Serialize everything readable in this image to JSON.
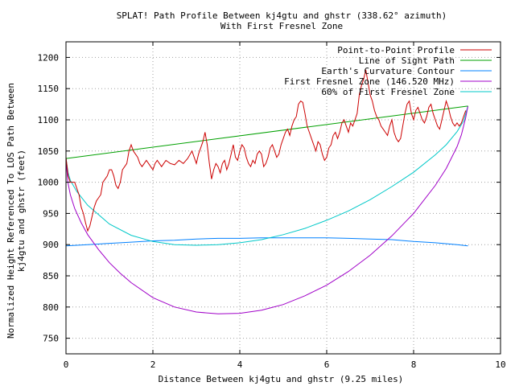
{
  "chart_data": {
    "type": "line",
    "title": "SPLAT! Path Profile Between kj4gtu and ghstr (338.62° azimuth)",
    "subtitle": "With First Fresnel Zone",
    "xlabel": "Distance Between kj4gtu and ghstr (9.25 miles)",
    "ylabel_line1": "Normalized Height Referenced To LOS Path Between",
    "ylabel_line2": "kj4gtu and ghstr (feet)",
    "xlim": [
      0,
      10
    ],
    "ylim": [
      725,
      1225
    ],
    "xticks": [
      "0",
      "2",
      "4",
      "6",
      "8",
      "10"
    ],
    "yticks": [
      "750",
      "800",
      "850",
      "900",
      "950",
      "1000",
      "1050",
      "1100",
      "1150",
      "1200"
    ],
    "grid": true,
    "legend_position": "top-right",
    "series": [
      {
        "name": "Point-to-Point Profile",
        "color": "#cc0000",
        "points": [
          [
            0.0,
            1040
          ],
          [
            0.05,
            1010
          ],
          [
            0.1,
            1000
          ],
          [
            0.15,
            1000
          ],
          [
            0.2,
            1000
          ],
          [
            0.3,
            980
          ],
          [
            0.35,
            960
          ],
          [
            0.4,
            950
          ],
          [
            0.45,
            935
          ],
          [
            0.5,
            922
          ],
          [
            0.55,
            930
          ],
          [
            0.6,
            945
          ],
          [
            0.65,
            960
          ],
          [
            0.7,
            970
          ],
          [
            0.8,
            980
          ],
          [
            0.85,
            1000
          ],
          [
            0.9,
            1005
          ],
          [
            0.95,
            1010
          ],
          [
            1.0,
            1020
          ],
          [
            1.05,
            1020
          ],
          [
            1.1,
            1010
          ],
          [
            1.15,
            995
          ],
          [
            1.2,
            990
          ],
          [
            1.25,
            1000
          ],
          [
            1.3,
            1020
          ],
          [
            1.35,
            1025
          ],
          [
            1.4,
            1030
          ],
          [
            1.45,
            1050
          ],
          [
            1.5,
            1060
          ],
          [
            1.55,
            1050
          ],
          [
            1.6,
            1045
          ],
          [
            1.65,
            1040
          ],
          [
            1.7,
            1030
          ],
          [
            1.75,
            1025
          ],
          [
            1.8,
            1030
          ],
          [
            1.85,
            1035
          ],
          [
            1.9,
            1030
          ],
          [
            2.0,
            1020
          ],
          [
            2.05,
            1030
          ],
          [
            2.1,
            1035
          ],
          [
            2.2,
            1025
          ],
          [
            2.25,
            1030
          ],
          [
            2.3,
            1035
          ],
          [
            2.4,
            1030
          ],
          [
            2.5,
            1028
          ],
          [
            2.6,
            1035
          ],
          [
            2.7,
            1030
          ],
          [
            2.8,
            1038
          ],
          [
            2.9,
            1050
          ],
          [
            2.95,
            1040
          ],
          [
            3.0,
            1030
          ],
          [
            3.05,
            1045
          ],
          [
            3.1,
            1055
          ],
          [
            3.15,
            1065
          ],
          [
            3.2,
            1080
          ],
          [
            3.25,
            1060
          ],
          [
            3.3,
            1030
          ],
          [
            3.35,
            1005
          ],
          [
            3.4,
            1020
          ],
          [
            3.45,
            1030
          ],
          [
            3.5,
            1025
          ],
          [
            3.55,
            1015
          ],
          [
            3.6,
            1030
          ],
          [
            3.65,
            1035
          ],
          [
            3.7,
            1020
          ],
          [
            3.75,
            1030
          ],
          [
            3.8,
            1045
          ],
          [
            3.85,
            1060
          ],
          [
            3.9,
            1040
          ],
          [
            3.95,
            1035
          ],
          [
            4.0,
            1050
          ],
          [
            4.05,
            1060
          ],
          [
            4.1,
            1055
          ],
          [
            4.15,
            1040
          ],
          [
            4.2,
            1030
          ],
          [
            4.25,
            1025
          ],
          [
            4.3,
            1035
          ],
          [
            4.35,
            1030
          ],
          [
            4.4,
            1045
          ],
          [
            4.45,
            1050
          ],
          [
            4.5,
            1045
          ],
          [
            4.55,
            1025
          ],
          [
            4.6,
            1030
          ],
          [
            4.65,
            1040
          ],
          [
            4.7,
            1055
          ],
          [
            4.75,
            1060
          ],
          [
            4.8,
            1050
          ],
          [
            4.85,
            1040
          ],
          [
            4.9,
            1045
          ],
          [
            4.95,
            1060
          ],
          [
            5.0,
            1070
          ],
          [
            5.05,
            1080
          ],
          [
            5.1,
            1085
          ],
          [
            5.15,
            1075
          ],
          [
            5.2,
            1090
          ],
          [
            5.25,
            1100
          ],
          [
            5.3,
            1105
          ],
          [
            5.35,
            1125
          ],
          [
            5.4,
            1130
          ],
          [
            5.45,
            1128
          ],
          [
            5.5,
            1110
          ],
          [
            5.55,
            1090
          ],
          [
            5.6,
            1080
          ],
          [
            5.65,
            1070
          ],
          [
            5.7,
            1060
          ],
          [
            5.75,
            1050
          ],
          [
            5.8,
            1065
          ],
          [
            5.85,
            1060
          ],
          [
            5.9,
            1045
          ],
          [
            5.95,
            1035
          ],
          [
            6.0,
            1040
          ],
          [
            6.05,
            1055
          ],
          [
            6.1,
            1060
          ],
          [
            6.15,
            1075
          ],
          [
            6.2,
            1080
          ],
          [
            6.25,
            1070
          ],
          [
            6.3,
            1080
          ],
          [
            6.35,
            1095
          ],
          [
            6.4,
            1100
          ],
          [
            6.45,
            1090
          ],
          [
            6.5,
            1080
          ],
          [
            6.55,
            1095
          ],
          [
            6.6,
            1090
          ],
          [
            6.65,
            1100
          ],
          [
            6.7,
            1110
          ],
          [
            6.75,
            1140
          ],
          [
            6.8,
            1155
          ],
          [
            6.85,
            1165
          ],
          [
            6.9,
            1180
          ],
          [
            6.95,
            1160
          ],
          [
            7.0,
            1140
          ],
          [
            7.05,
            1130
          ],
          [
            7.1,
            1115
          ],
          [
            7.15,
            1105
          ],
          [
            7.2,
            1100
          ],
          [
            7.25,
            1090
          ],
          [
            7.3,
            1085
          ],
          [
            7.35,
            1080
          ],
          [
            7.4,
            1075
          ],
          [
            7.45,
            1090
          ],
          [
            7.5,
            1100
          ],
          [
            7.55,
            1080
          ],
          [
            7.6,
            1070
          ],
          [
            7.65,
            1065
          ],
          [
            7.7,
            1070
          ],
          [
            7.75,
            1090
          ],
          [
            7.8,
            1110
          ],
          [
            7.85,
            1125
          ],
          [
            7.9,
            1130
          ],
          [
            7.95,
            1110
          ],
          [
            8.0,
            1100
          ],
          [
            8.05,
            1115
          ],
          [
            8.1,
            1120
          ],
          [
            8.15,
            1110
          ],
          [
            8.2,
            1100
          ],
          [
            8.25,
            1095
          ],
          [
            8.3,
            1105
          ],
          [
            8.35,
            1120
          ],
          [
            8.4,
            1125
          ],
          [
            8.45,
            1110
          ],
          [
            8.5,
            1100
          ],
          [
            8.55,
            1090
          ],
          [
            8.6,
            1085
          ],
          [
            8.65,
            1100
          ],
          [
            8.7,
            1115
          ],
          [
            8.75,
            1130
          ],
          [
            8.8,
            1120
          ],
          [
            8.85,
            1105
          ],
          [
            8.9,
            1095
          ],
          [
            8.95,
            1090
          ],
          [
            9.0,
            1095
          ],
          [
            9.05,
            1090
          ],
          [
            9.1,
            1095
          ],
          [
            9.15,
            1105
          ],
          [
            9.2,
            1115
          ]
        ]
      },
      {
        "name": "Line of Sight Path",
        "color": "#00a000",
        "points": [
          [
            0.0,
            1038
          ],
          [
            9.25,
            1122
          ]
        ]
      },
      {
        "name": "Earth's Curvature Contour",
        "color": "#0080ff",
        "points": [
          [
            0.0,
            898
          ],
          [
            0.5,
            900
          ],
          [
            1.0,
            902
          ],
          [
            1.5,
            904
          ],
          [
            2.0,
            906
          ],
          [
            2.5,
            907
          ],
          [
            3.0,
            909
          ],
          [
            3.5,
            910
          ],
          [
            4.0,
            910
          ],
          [
            4.5,
            911
          ],
          [
            5.0,
            911
          ],
          [
            5.5,
            911
          ],
          [
            6.0,
            911
          ],
          [
            6.5,
            910
          ],
          [
            7.0,
            909
          ],
          [
            7.5,
            908
          ],
          [
            8.0,
            905
          ],
          [
            8.5,
            903
          ],
          [
            9.0,
            900
          ],
          [
            9.25,
            898
          ]
        ]
      },
      {
        "name": "First Fresnel Zone (146.520 MHz)",
        "color": "#a000c8",
        "points": [
          [
            0.0,
            1038
          ],
          [
            0.04,
            1001
          ],
          [
            0.1,
            980
          ],
          [
            0.2,
            958
          ],
          [
            0.35,
            935
          ],
          [
            0.5,
            916
          ],
          [
            0.75,
            892
          ],
          [
            1.0,
            871
          ],
          [
            1.25,
            854
          ],
          [
            1.5,
            839
          ],
          [
            2.0,
            815
          ],
          [
            2.5,
            800
          ],
          [
            3.0,
            792
          ],
          [
            3.5,
            789
          ],
          [
            4.0,
            790
          ],
          [
            4.5,
            795
          ],
          [
            5.0,
            804
          ],
          [
            5.5,
            818
          ],
          [
            6.0,
            835
          ],
          [
            6.5,
            857
          ],
          [
            7.0,
            883
          ],
          [
            7.5,
            914
          ],
          [
            8.0,
            950
          ],
          [
            8.5,
            995
          ],
          [
            8.75,
            1022
          ],
          [
            9.0,
            1057
          ],
          [
            9.1,
            1076
          ],
          [
            9.2,
            1104
          ],
          [
            9.25,
            1122
          ]
        ]
      },
      {
        "name": "60% of First Fresnel Zone",
        "color": "#00c8c8",
        "points": [
          [
            0.0,
            1038
          ],
          [
            0.05,
            1015
          ],
          [
            0.1,
            1003
          ],
          [
            0.25,
            985
          ],
          [
            0.5,
            963
          ],
          [
            1.0,
            933
          ],
          [
            1.5,
            915
          ],
          [
            2.0,
            905
          ],
          [
            2.5,
            900
          ],
          [
            3.0,
            899
          ],
          [
            3.5,
            900
          ],
          [
            4.0,
            903
          ],
          [
            4.5,
            908
          ],
          [
            5.0,
            916
          ],
          [
            5.5,
            926
          ],
          [
            6.0,
            939
          ],
          [
            6.5,
            954
          ],
          [
            7.0,
            972
          ],
          [
            7.5,
            993
          ],
          [
            8.0,
            1016
          ],
          [
            8.5,
            1044
          ],
          [
            8.75,
            1060
          ],
          [
            9.0,
            1081
          ],
          [
            9.15,
            1098
          ],
          [
            9.25,
            1122
          ]
        ]
      }
    ]
  }
}
